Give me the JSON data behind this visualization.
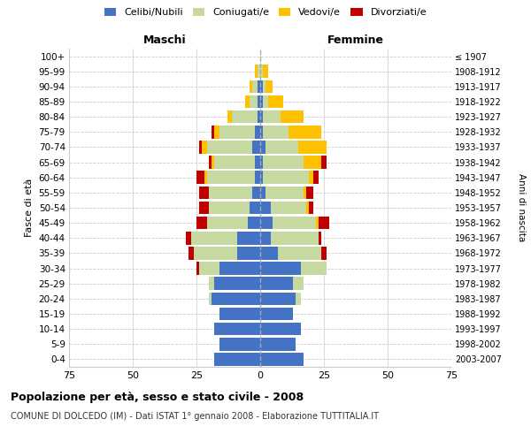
{
  "age_groups": [
    "0-4",
    "5-9",
    "10-14",
    "15-19",
    "20-24",
    "25-29",
    "30-34",
    "35-39",
    "40-44",
    "45-49",
    "50-54",
    "55-59",
    "60-64",
    "65-69",
    "70-74",
    "75-79",
    "80-84",
    "85-89",
    "90-94",
    "95-99",
    "100+"
  ],
  "birth_years": [
    "2003-2007",
    "1998-2002",
    "1993-1997",
    "1988-1992",
    "1983-1987",
    "1978-1982",
    "1973-1977",
    "1968-1972",
    "1963-1967",
    "1958-1962",
    "1953-1957",
    "1948-1952",
    "1943-1947",
    "1938-1942",
    "1933-1937",
    "1928-1932",
    "1923-1927",
    "1918-1922",
    "1913-1917",
    "1908-1912",
    "≤ 1907"
  ],
  "male": {
    "celibi": [
      18,
      16,
      18,
      16,
      19,
      18,
      16,
      9,
      9,
      5,
      4,
      3,
      2,
      2,
      3,
      2,
      1,
      1,
      1,
      0,
      0
    ],
    "coniugati": [
      0,
      0,
      0,
      0,
      1,
      2,
      8,
      17,
      18,
      16,
      16,
      17,
      19,
      16,
      18,
      14,
      10,
      3,
      2,
      1,
      0
    ],
    "vedovi": [
      0,
      0,
      0,
      0,
      0,
      0,
      0,
      0,
      0,
      0,
      0,
      0,
      1,
      1,
      2,
      2,
      2,
      2,
      1,
      1,
      0
    ],
    "divorziati": [
      0,
      0,
      0,
      0,
      0,
      0,
      1,
      2,
      2,
      4,
      4,
      4,
      3,
      1,
      1,
      1,
      0,
      0,
      0,
      0,
      0
    ]
  },
  "female": {
    "nubili": [
      17,
      14,
      16,
      13,
      14,
      13,
      16,
      7,
      4,
      5,
      4,
      2,
      1,
      1,
      2,
      1,
      1,
      1,
      1,
      0,
      0
    ],
    "coniugate": [
      0,
      0,
      0,
      0,
      2,
      4,
      10,
      17,
      19,
      17,
      14,
      15,
      18,
      16,
      13,
      10,
      7,
      2,
      1,
      1,
      0
    ],
    "vedove": [
      0,
      0,
      0,
      0,
      0,
      0,
      0,
      0,
      0,
      1,
      1,
      1,
      2,
      7,
      11,
      13,
      9,
      6,
      3,
      2,
      0
    ],
    "divorziate": [
      0,
      0,
      0,
      0,
      0,
      0,
      0,
      2,
      1,
      4,
      2,
      3,
      2,
      2,
      0,
      0,
      0,
      0,
      0,
      0,
      0
    ]
  },
  "colors": {
    "celibi": "#4472c4",
    "coniugati": "#c5d9a0",
    "vedovi": "#ffc000",
    "divorziati": "#c00000"
  },
  "title": "Popolazione per età, sesso e stato civile - 2008",
  "subtitle": "COMUNE DI DOLCEDO (IM) - Dati ISTAT 1° gennaio 2008 - Elaborazione TUTTITALIA.IT",
  "xlabel_left": "Maschi",
  "xlabel_right": "Femmine",
  "ylabel": "Fasce di età",
  "ylabel_right": "Anni di nascita",
  "xlim": 75,
  "legend_labels": [
    "Celibi/Nubili",
    "Coniugati/e",
    "Vedovi/e",
    "Divorziati/e"
  ],
  "background_color": "#ffffff",
  "grid_color": "#cccccc"
}
